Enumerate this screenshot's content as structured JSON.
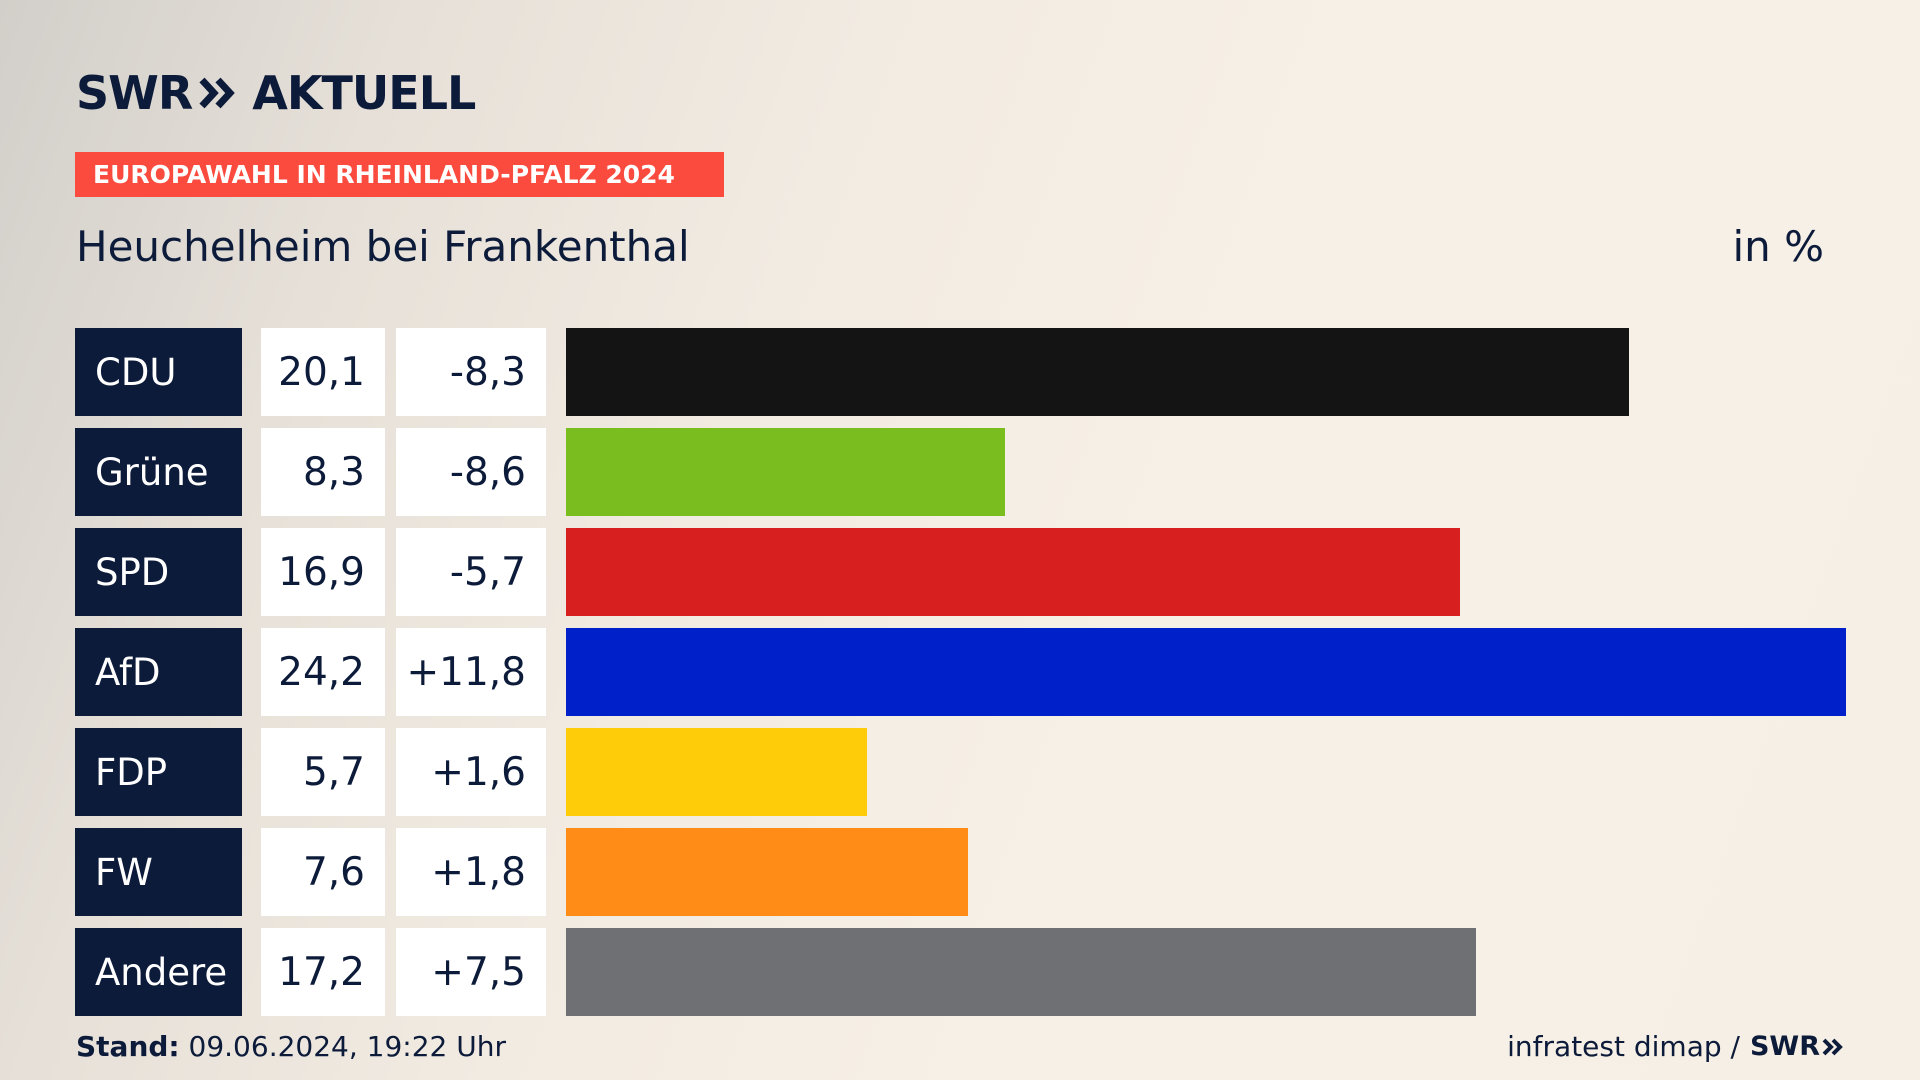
{
  "header": {
    "logo_text": "SWR",
    "logo_suffix": "AKTUELL",
    "banner": "EUROPAWAHL IN RHEINLAND-PFALZ 2024",
    "subtitle": "Heuchelheim bei Frankenthal",
    "unit": "in %"
  },
  "chart_data": {
    "type": "bar",
    "orientation": "horizontal",
    "title": "Heuchelheim bei Frankenthal",
    "unit": "in %",
    "categories": [
      "CDU",
      "Grüne",
      "SPD",
      "AfD",
      "FDP",
      "FW",
      "Andere"
    ],
    "values": [
      20.1,
      8.3,
      16.9,
      24.2,
      5.7,
      7.6,
      17.2
    ],
    "value_labels": [
      "20,1",
      "8,3",
      "16,9",
      "24,2",
      "5,7",
      "7,6",
      "17,2"
    ],
    "change_labels": [
      "-8,3",
      "-8,6",
      "-5,7",
      "+11,8",
      "+1,6",
      "+1,8",
      "+7,5"
    ],
    "changes": [
      -8.3,
      -8.6,
      -5.7,
      11.8,
      1.6,
      1.8,
      7.5
    ],
    "colors": [
      "#141414",
      "#79bd1e",
      "#d71f1f",
      "#0021c9",
      "#ffcc0a",
      "#ff8c17",
      "#6e7073"
    ],
    "xlim": [
      0,
      24.2
    ]
  },
  "footer": {
    "stand_label": "Stand:",
    "stand_value": "09.06.2024, 19:22 Uhr",
    "source": "infratest dimap /",
    "source_logo": "SWR"
  }
}
